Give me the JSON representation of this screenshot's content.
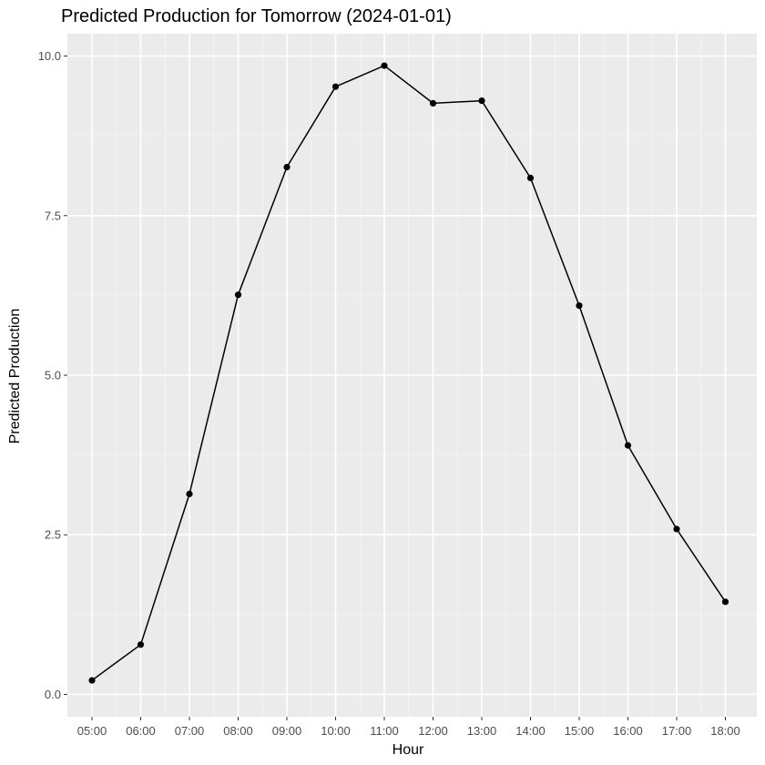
{
  "chart_data": {
    "type": "line",
    "title": "Predicted Production for Tomorrow (2024-01-01)",
    "xlabel": "Hour",
    "ylabel": "Predicted Production",
    "categories": [
      "05:00",
      "06:00",
      "07:00",
      "08:00",
      "09:00",
      "10:00",
      "11:00",
      "12:00",
      "13:00",
      "14:00",
      "15:00",
      "16:00",
      "17:00",
      "18:00"
    ],
    "series": [
      {
        "values": [
          0.22,
          0.78,
          3.14,
          6.26,
          8.26,
          9.52,
          9.85,
          9.26,
          9.3,
          8.09,
          6.09,
          3.9,
          2.59,
          1.45
        ]
      }
    ],
    "ylim": [
      -0.35,
      10.35
    ],
    "yticks": [
      0.0,
      2.5,
      5.0,
      7.5,
      10.0
    ],
    "ytick_labels": [
      "0.0",
      "2.5",
      "5.0",
      "7.5",
      "10.0"
    ],
    "grid": true,
    "legend": "none",
    "colors": {
      "panel_background": "#ebebeb",
      "grid_major": "#ffffff",
      "grid_minor": "#f5f5f5",
      "line": "#000000",
      "point": "#000000",
      "tick_text": "#4d4d4d",
      "tick_mark": "#333333"
    }
  }
}
